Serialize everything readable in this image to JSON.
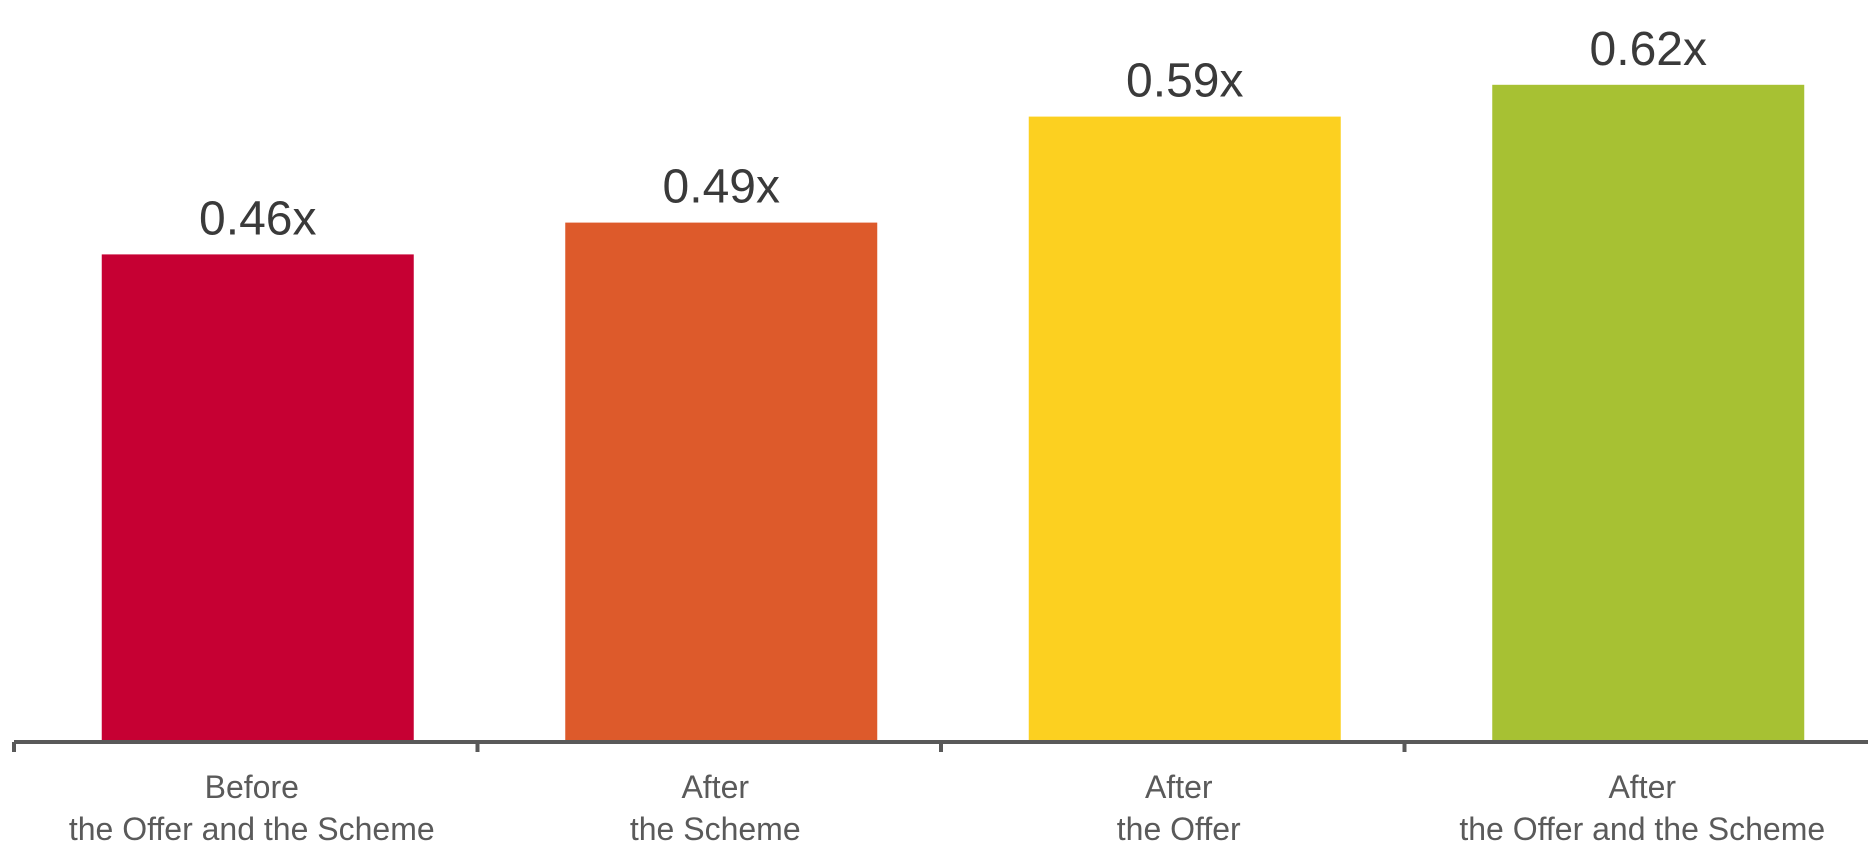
{
  "chart_data": {
    "type": "bar",
    "categories": [
      [
        "Before",
        "the Offer and the Scheme"
      ],
      [
        "After",
        "the Scheme"
      ],
      [
        "After",
        "the Offer"
      ],
      [
        "After",
        "the Offer and the Scheme"
      ]
    ],
    "values": [
      0.46,
      0.49,
      0.59,
      0.62
    ],
    "data_labels": [
      "0.46x",
      "0.49x",
      "0.59x",
      "0.62x"
    ],
    "colors": [
      "#c60033",
      "#dd5a2b",
      "#fcd020",
      "#a7c133"
    ],
    "title": "",
    "xlabel": "",
    "ylabel": "",
    "ylim": [
      0,
      0.7
    ],
    "grid": false,
    "legend": "none",
    "axis_color": "#595959"
  }
}
